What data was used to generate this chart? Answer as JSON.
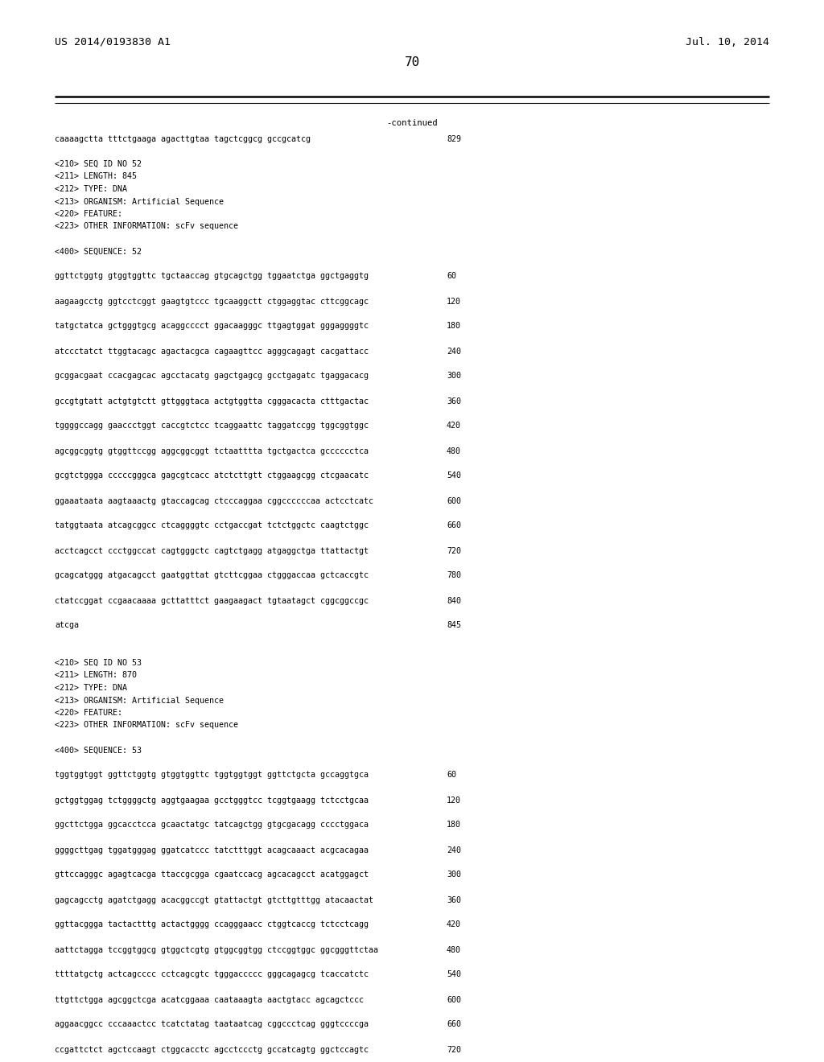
{
  "bg_color": "#ffffff",
  "header_left": "US 2014/0193830 A1",
  "header_right": "Jul. 10, 2014",
  "page_number": "70",
  "continued_label": "-continued",
  "monospace_font_size": 7.2,
  "header_font_size": 9.5,
  "page_num_font_size": 11.5,
  "lines": [
    {
      "type": "seq",
      "text": "caaaagctta tttctgaaga agacttgtaa tagctcggcg gccgcatcg",
      "num": "829"
    },
    {
      "type": "blank"
    },
    {
      "type": "meta",
      "text": "<210> SEQ ID NO 52"
    },
    {
      "type": "meta",
      "text": "<211> LENGTH: 845"
    },
    {
      "type": "meta",
      "text": "<212> TYPE: DNA"
    },
    {
      "type": "meta",
      "text": "<213> ORGANISM: Artificial Sequence"
    },
    {
      "type": "meta",
      "text": "<220> FEATURE:"
    },
    {
      "type": "meta",
      "text": "<223> OTHER INFORMATION: scFv sequence"
    },
    {
      "type": "blank"
    },
    {
      "type": "meta",
      "text": "<400> SEQUENCE: 52"
    },
    {
      "type": "blank"
    },
    {
      "type": "seq",
      "text": "ggttctggtg gtggtggttc tgctaaccag gtgcagctgg tggaatctga ggctgaggtg",
      "num": "60"
    },
    {
      "type": "blank"
    },
    {
      "type": "seq",
      "text": "aagaagcctg ggtcctcggt gaagtgtccc tgcaaggctt ctggaggtac cttcggcagc",
      "num": "120"
    },
    {
      "type": "blank"
    },
    {
      "type": "seq",
      "text": "tatgctatca gctgggtgcg acaggcccct ggacaagggc ttgagtggat gggaggggtc",
      "num": "180"
    },
    {
      "type": "blank"
    },
    {
      "type": "seq",
      "text": "atccctatct ttggtacagc agactacgca cagaagttcc agggcagagt cacgattacc",
      "num": "240"
    },
    {
      "type": "blank"
    },
    {
      "type": "seq",
      "text": "gcggacgaat ccacgagcac agcctacatg gagctgagcg gcctgagatc tgaggacacg",
      "num": "300"
    },
    {
      "type": "blank"
    },
    {
      "type": "seq",
      "text": "gccgtgtatt actgtgtctt gttgggtaca actgtggtta cgggacacta ctttgactac",
      "num": "360"
    },
    {
      "type": "blank"
    },
    {
      "type": "seq",
      "text": "tggggccagg gaaccctggt caccgtctcc tcaggaattc taggatccgg tggcggtggc",
      "num": "420"
    },
    {
      "type": "blank"
    },
    {
      "type": "seq",
      "text": "agcggcggtg gtggttccgg aggcggcggt tctaatttta tgctgactca gcccccctca",
      "num": "480"
    },
    {
      "type": "blank"
    },
    {
      "type": "seq",
      "text": "gcgtctggga cccccgggca gagcgtcacc atctcttgtt ctggaagcgg ctcgaacatc",
      "num": "540"
    },
    {
      "type": "blank"
    },
    {
      "type": "seq",
      "text": "ggaaataata aagtaaactg gtaccagcag ctcccaggaa cggccccccaa actcctcatc",
      "num": "600"
    },
    {
      "type": "blank"
    },
    {
      "type": "seq",
      "text": "tatggtaata atcagcggcc ctcaggggtc cctgaccgat tctctggctc caagtctggc",
      "num": "660"
    },
    {
      "type": "blank"
    },
    {
      "type": "seq",
      "text": "acctcagcct ccctggccat cagtgggctc cagtctgagg atgaggctga ttattactgt",
      "num": "720"
    },
    {
      "type": "blank"
    },
    {
      "type": "seq",
      "text": "gcagcatggg atgacagcct gaatggttat gtcttcggaa ctgggaccaa gctcaccgtc",
      "num": "780"
    },
    {
      "type": "blank"
    },
    {
      "type": "seq",
      "text": "ctatccggat ccgaacaaaa gcttatttct gaagaagact tgtaatagct cggcggccgc",
      "num": "840"
    },
    {
      "type": "blank"
    },
    {
      "type": "seq",
      "text": "atcga",
      "num": "845"
    },
    {
      "type": "blank"
    },
    {
      "type": "blank"
    },
    {
      "type": "meta",
      "text": "<210> SEQ ID NO 53"
    },
    {
      "type": "meta",
      "text": "<211> LENGTH: 870"
    },
    {
      "type": "meta",
      "text": "<212> TYPE: DNA"
    },
    {
      "type": "meta",
      "text": "<213> ORGANISM: Artificial Sequence"
    },
    {
      "type": "meta",
      "text": "<220> FEATURE:"
    },
    {
      "type": "meta",
      "text": "<223> OTHER INFORMATION: scFv sequence"
    },
    {
      "type": "blank"
    },
    {
      "type": "meta",
      "text": "<400> SEQUENCE: 53"
    },
    {
      "type": "blank"
    },
    {
      "type": "seq",
      "text": "tggtggtggt ggttctggtg gtggtggttc tggtggtggt ggttctgcta gccaggtgca",
      "num": "60"
    },
    {
      "type": "blank"
    },
    {
      "type": "seq",
      "text": "gctggtggag tctggggctg aggtgaagaa gcctgggtcc tcggtgaagg tctcctgcaa",
      "num": "120"
    },
    {
      "type": "blank"
    },
    {
      "type": "seq",
      "text": "ggcttctgga ggcacctcca gcaactatgc tatcagctgg gtgcgacagg cccctggaca",
      "num": "180"
    },
    {
      "type": "blank"
    },
    {
      "type": "seq",
      "text": "ggggcttgag tggatgggag ggatcatccc tatctttggt acagcaaact acgcacagaa",
      "num": "240"
    },
    {
      "type": "blank"
    },
    {
      "type": "seq",
      "text": "gttccagggc agagtcacga ttaccgcgga cgaatccacg agcacagcct acatggagct",
      "num": "300"
    },
    {
      "type": "blank"
    },
    {
      "type": "seq",
      "text": "gagcagcctg agatctgagg acacggccgt gtattactgt gtcttgtttgg atacaactat",
      "num": "360"
    },
    {
      "type": "blank"
    },
    {
      "type": "seq",
      "text": "ggttacggga tactactttg actactgggg ccagggaacc ctggtcaccg tctcctcagg",
      "num": "420"
    },
    {
      "type": "blank"
    },
    {
      "type": "seq",
      "text": "aattctagga tccggtggcg gtggctcgtg gtggcggtgg ctccggtggc ggcgggttctaa",
      "num": "480"
    },
    {
      "type": "blank"
    },
    {
      "type": "seq",
      "text": "ttttatgctg actcagcccc cctcagcgtc tgggaccccc gggcagagcg tcaccatctc",
      "num": "540"
    },
    {
      "type": "blank"
    },
    {
      "type": "seq",
      "text": "ttgttctgga agcggctcga acatcggaaa caataaagta aactgtacc agcagctccc",
      "num": "600"
    },
    {
      "type": "blank"
    },
    {
      "type": "seq",
      "text": "aggaacggcc cccaaactcc tcatctatag taataatcag cggccctcag gggtccccga",
      "num": "660"
    },
    {
      "type": "blank"
    },
    {
      "type": "seq",
      "text": "ccgattctct agctccaagt ctggcacctc agcctccctg gccatcagtg ggctccagtc",
      "num": "720"
    }
  ]
}
